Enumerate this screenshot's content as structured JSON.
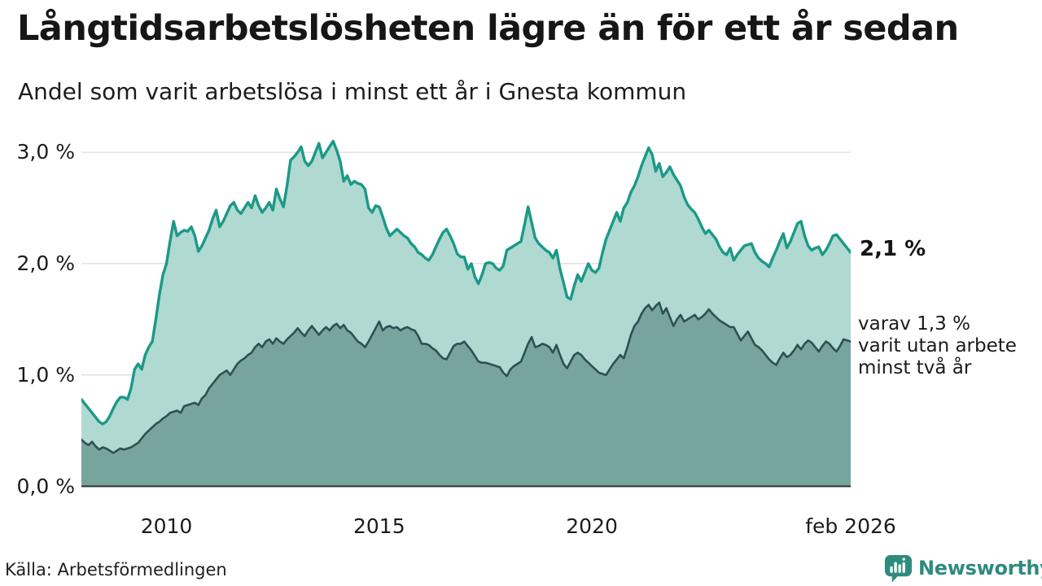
{
  "header": {
    "title": "Långtidsarbetslösheten lägre än för ett år sedan",
    "subtitle": "Andel som varit arbetslösa i minst ett år i Gnesta kommun"
  },
  "chart_data": {
    "type": "area",
    "title": "Långtidsarbetslösheten lägre än för ett år sedan",
    "subtitle": "Andel som varit arbetslösa i minst ett år i Gnesta kommun",
    "x_unit": "month",
    "x_range": [
      "2008-01",
      "2026-02"
    ],
    "ylim": [
      0,
      3.2
    ],
    "grid": "horizontal",
    "y_ticks": [
      {
        "label": "0,0 %",
        "value": 0
      },
      {
        "label": "1,0 %",
        "value": 1
      },
      {
        "label": "2,0 %",
        "value": 2
      },
      {
        "label": "3,0 %",
        "value": 3
      }
    ],
    "x_ticks": [
      {
        "label": "2010",
        "month_index": 24
      },
      {
        "label": "2015",
        "month_index": 84
      },
      {
        "label": "2020",
        "month_index": 144
      },
      {
        "label": "feb 2026",
        "month_index": 217
      }
    ],
    "annotations": {
      "latest_value": "2,1 %",
      "note_lines": [
        "varav 1,3 %",
        "varit utan arbete",
        "minst två år"
      ]
    },
    "series": [
      {
        "name": "Arbetslösa minst ett år",
        "line_color": "#1b9987",
        "fill_color": "#a9d6ce",
        "line_width": 3.4,
        "values": [
          0.78,
          0.74,
          0.7,
          0.66,
          0.62,
          0.58,
          0.56,
          0.58,
          0.63,
          0.7,
          0.76,
          0.8,
          0.8,
          0.78,
          0.88,
          1.05,
          1.1,
          1.05,
          1.18,
          1.25,
          1.3,
          1.5,
          1.72,
          1.9,
          2.0,
          2.2,
          2.38,
          2.25,
          2.28,
          2.3,
          2.29,
          2.33,
          2.25,
          2.11,
          2.16,
          2.23,
          2.3,
          2.4,
          2.48,
          2.33,
          2.38,
          2.45,
          2.52,
          2.55,
          2.48,
          2.45,
          2.5,
          2.55,
          2.5,
          2.61,
          2.52,
          2.46,
          2.5,
          2.55,
          2.48,
          2.67,
          2.58,
          2.51,
          2.7,
          2.93,
          2.96,
          3.0,
          3.05,
          2.92,
          2.88,
          2.92,
          3.0,
          3.08,
          2.95,
          3.0,
          3.05,
          3.1,
          3.02,
          2.92,
          2.74,
          2.79,
          2.71,
          2.74,
          2.72,
          2.71,
          2.67,
          2.5,
          2.46,
          2.52,
          2.51,
          2.42,
          2.32,
          2.25,
          2.28,
          2.31,
          2.28,
          2.25,
          2.23,
          2.18,
          2.15,
          2.1,
          2.08,
          2.05,
          2.03,
          2.08,
          2.15,
          2.22,
          2.28,
          2.31,
          2.25,
          2.18,
          2.09,
          2.06,
          2.06,
          1.95,
          2.0,
          1.88,
          1.82,
          1.9,
          2.0,
          2.01,
          2.0,
          1.96,
          1.94,
          1.98,
          2.12,
          2.14,
          2.16,
          2.18,
          2.2,
          2.35,
          2.51,
          2.37,
          2.23,
          2.18,
          2.15,
          2.12,
          2.1,
          2.05,
          2.12,
          1.95,
          1.83,
          1.7,
          1.68,
          1.8,
          1.9,
          1.84,
          1.92,
          2.0,
          1.94,
          1.92,
          1.96,
          2.1,
          2.22,
          2.3,
          2.38,
          2.46,
          2.38,
          2.5,
          2.55,
          2.64,
          2.7,
          2.78,
          2.88,
          2.96,
          3.04,
          2.98,
          2.83,
          2.9,
          2.78,
          2.82,
          2.87,
          2.8,
          2.75,
          2.7,
          2.6,
          2.53,
          2.49,
          2.46,
          2.4,
          2.33,
          2.27,
          2.3,
          2.26,
          2.22,
          2.15,
          2.1,
          2.08,
          2.14,
          2.03,
          2.08,
          2.12,
          2.16,
          2.17,
          2.18,
          2.1,
          2.05,
          2.02,
          2.0,
          1.97,
          2.05,
          2.12,
          2.2,
          2.27,
          2.14,
          2.2,
          2.28,
          2.36,
          2.38,
          2.25,
          2.16,
          2.12,
          2.14,
          2.15,
          2.08,
          2.12,
          2.18,
          2.25,
          2.26,
          2.22,
          2.18,
          2.14,
          2.1
        ]
      },
      {
        "name": "Arbetslösa minst två år",
        "line_color": "#2e5053",
        "fill_color": "#73a09a",
        "line_width": 2.6,
        "values": [
          0.42,
          0.39,
          0.37,
          0.4,
          0.36,
          0.33,
          0.35,
          0.34,
          0.32,
          0.3,
          0.32,
          0.34,
          0.33,
          0.34,
          0.35,
          0.37,
          0.39,
          0.43,
          0.47,
          0.5,
          0.53,
          0.56,
          0.58,
          0.61,
          0.63,
          0.66,
          0.67,
          0.68,
          0.66,
          0.72,
          0.73,
          0.74,
          0.75,
          0.73,
          0.79,
          0.82,
          0.88,
          0.92,
          0.96,
          1.0,
          1.02,
          1.04,
          1.0,
          1.05,
          1.1,
          1.13,
          1.15,
          1.18,
          1.2,
          1.25,
          1.28,
          1.25,
          1.3,
          1.32,
          1.28,
          1.33,
          1.3,
          1.28,
          1.32,
          1.35,
          1.38,
          1.42,
          1.38,
          1.35,
          1.4,
          1.44,
          1.4,
          1.36,
          1.4,
          1.43,
          1.4,
          1.44,
          1.46,
          1.42,
          1.45,
          1.4,
          1.38,
          1.34,
          1.3,
          1.28,
          1.25,
          1.3,
          1.36,
          1.42,
          1.48,
          1.4,
          1.43,
          1.44,
          1.42,
          1.43,
          1.4,
          1.42,
          1.43,
          1.41,
          1.4,
          1.35,
          1.28,
          1.28,
          1.27,
          1.24,
          1.22,
          1.18,
          1.15,
          1.14,
          1.2,
          1.26,
          1.28,
          1.28,
          1.3,
          1.26,
          1.22,
          1.17,
          1.12,
          1.11,
          1.11,
          1.1,
          1.09,
          1.08,
          1.07,
          1.02,
          0.99,
          1.05,
          1.08,
          1.1,
          1.12,
          1.2,
          1.28,
          1.34,
          1.25,
          1.26,
          1.28,
          1.27,
          1.25,
          1.2,
          1.27,
          1.18,
          1.1,
          1.06,
          1.12,
          1.18,
          1.2,
          1.18,
          1.14,
          1.11,
          1.08,
          1.05,
          1.02,
          1.01,
          1.0,
          1.05,
          1.1,
          1.14,
          1.18,
          1.15,
          1.25,
          1.36,
          1.44,
          1.48,
          1.55,
          1.6,
          1.63,
          1.58,
          1.62,
          1.65,
          1.55,
          1.6,
          1.52,
          1.44,
          1.5,
          1.54,
          1.48,
          1.5,
          1.52,
          1.54,
          1.5,
          1.52,
          1.55,
          1.59,
          1.55,
          1.52,
          1.49,
          1.47,
          1.45,
          1.43,
          1.43,
          1.37,
          1.31,
          1.35,
          1.39,
          1.33,
          1.27,
          1.25,
          1.22,
          1.18,
          1.14,
          1.11,
          1.09,
          1.15,
          1.2,
          1.16,
          1.18,
          1.22,
          1.27,
          1.23,
          1.28,
          1.31,
          1.29,
          1.25,
          1.21,
          1.26,
          1.3,
          1.28,
          1.24,
          1.21,
          1.26,
          1.32,
          1.31,
          1.3
        ]
      }
    ],
    "style": {
      "grid_color": "#dcdcdc",
      "axis_color": "#303030",
      "fill_opacity": 0.93
    }
  },
  "footer": {
    "source": "Källa: Arbetsförmedlingen",
    "brand": "Newsworthy",
    "brand_color": "#2e8b7d"
  }
}
